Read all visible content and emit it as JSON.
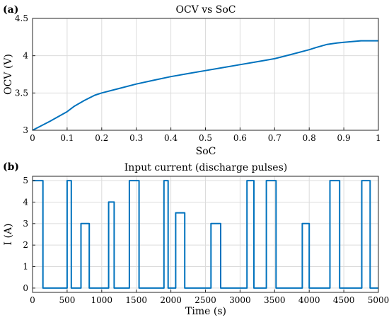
{
  "colors": {
    "line": "#0072BD",
    "grid": "#dcdcdc",
    "axis": "#262626"
  },
  "chart_data": [
    {
      "panel_label": "(a)",
      "type": "line",
      "title": "OCV vs SoC",
      "xlabel": "SoC",
      "ylabel": "OCV (V)",
      "xlim": [
        0,
        1
      ],
      "ylim": [
        3,
        4.5
      ],
      "grid": true,
      "xticks": [
        0,
        0.1,
        0.2,
        0.3,
        0.4,
        0.5,
        0.6,
        0.7,
        0.8,
        0.9,
        1
      ],
      "xtick_labels": [
        "0",
        "0.1",
        "0.2",
        "0.3",
        "0.4",
        "0.5",
        "0.6",
        "0.7",
        "0.8",
        "0.9",
        "1"
      ],
      "yticks": [
        3,
        3.5,
        4,
        4.5
      ],
      "ytick_labels": [
        "3",
        "3.5",
        "4",
        "4.5"
      ],
      "series": [
        {
          "x": [
            0,
            0.05,
            0.1,
            0.12,
            0.15,
            0.18,
            0.2,
            0.25,
            0.3,
            0.35,
            0.4,
            0.45,
            0.5,
            0.55,
            0.6,
            0.65,
            0.7,
            0.75,
            0.8,
            0.82,
            0.85,
            0.88,
            0.9,
            0.95,
            1
          ],
          "y": [
            3.0,
            3.12,
            3.25,
            3.32,
            3.4,
            3.47,
            3.5,
            3.56,
            3.62,
            3.67,
            3.72,
            3.76,
            3.8,
            3.84,
            3.88,
            3.92,
            3.96,
            4.02,
            4.08,
            4.11,
            4.15,
            4.17,
            4.18,
            4.2,
            4.2
          ]
        }
      ]
    },
    {
      "panel_label": "(b)",
      "type": "line",
      "title": "Input current (discharge pulses)",
      "xlabel": "Time (s)",
      "ylabel": "I (A)",
      "xlim": [
        0,
        5000
      ],
      "ylim": [
        -0.2,
        5.2
      ],
      "grid": true,
      "xticks": [
        0,
        500,
        1000,
        1500,
        2000,
        2500,
        3000,
        3500,
        4000,
        4500,
        5000
      ],
      "xtick_labels": [
        "0",
        "500",
        "1000",
        "1500",
        "2000",
        "2500",
        "3000",
        "3500",
        "4000",
        "4500",
        "5000"
      ],
      "yticks": [
        0,
        1,
        2,
        3,
        4,
        5
      ],
      "ytick_labels": [
        "0",
        "1",
        "2",
        "3",
        "4",
        "5"
      ],
      "series": [
        {
          "x": [
            0,
            150,
            150,
            500,
            500,
            560,
            560,
            700,
            700,
            820,
            820,
            1100,
            1100,
            1180,
            1180,
            1400,
            1400,
            1540,
            1540,
            1900,
            1900,
            1960,
            1960,
            2070,
            2070,
            2200,
            2200,
            2580,
            2580,
            2720,
            2720,
            3100,
            3100,
            3200,
            3200,
            3380,
            3380,
            3520,
            3520,
            3900,
            3900,
            4000,
            4000,
            4300,
            4300,
            4440,
            4440,
            4760,
            4760,
            4880,
            4880,
            5000
          ],
          "y": [
            5,
            5,
            0,
            0,
            5,
            5,
            0,
            0,
            3,
            3,
            0,
            0,
            4,
            4,
            0,
            0,
            5,
            5,
            0,
            0,
            5,
            5,
            0,
            0,
            3.5,
            3.5,
            0,
            0,
            3,
            3,
            0,
            0,
            5,
            5,
            0,
            0,
            5,
            5,
            0,
            0,
            3,
            3,
            0,
            0,
            5,
            5,
            0,
            0,
            5,
            5,
            0,
            0
          ]
        }
      ]
    }
  ]
}
